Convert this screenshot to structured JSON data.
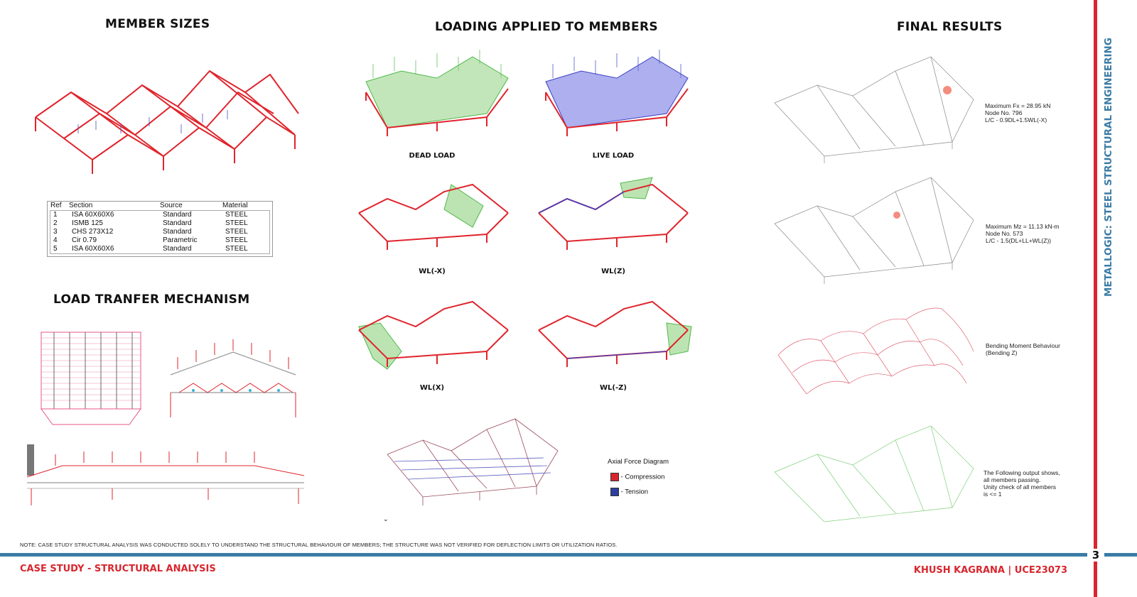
{
  "headings": {
    "member_sizes": "MEMBER SIZES",
    "loading": "LOADING APPLIED TO MEMBERS",
    "final_results": "FINAL RESULTS",
    "load_transfer": "LOAD TRANFER MECHANISM"
  },
  "section_table": {
    "headers": [
      "Ref",
      "Section",
      "Source",
      "Material"
    ],
    "rows": [
      [
        "1",
        "ISA 60X60X6",
        "Standard",
        "STEEL"
      ],
      [
        "2",
        "ISMB 125",
        "Standard",
        "STEEL"
      ],
      [
        "3",
        "CHS 273X12",
        "Standard",
        "STEEL"
      ],
      [
        "4",
        "Cir 0.79",
        "Parametric",
        "STEEL"
      ],
      [
        "5",
        "ISA 60X60X6",
        "Standard",
        "STEEL"
      ]
    ]
  },
  "load_panels": {
    "dead": "DEAD LOAD",
    "live": "LIVE LOAD",
    "wl_mx": "WL(-X)",
    "wl_z": "WL(Z)",
    "wl_x": "WL(X)",
    "wl_mz": "WL(-Z)"
  },
  "axial_legend": {
    "title": "Axial Force Diagram",
    "compression": "- Compression",
    "tension": "- Tension",
    "compression_color": "#d8262e",
    "tension_color": "#2b3f9e"
  },
  "results": {
    "r1": [
      "Maximum Fx = 28.95 kN",
      "Node No. 796",
      "L/C - 0.9DL+1.5WL(-X)"
    ],
    "r2": [
      "Maximum Mz = 11.13 kN-m",
      "Node No. 573",
      "L/C - 1.5(DL+LL+WL(Z))"
    ],
    "r3": [
      "Bending Moment Behaviour",
      "(Bending Z)"
    ],
    "r4": [
      "The Following output shows,",
      "all members passing.",
      "Unity check of all members",
      "is <= 1"
    ]
  },
  "note": "NOTE: CASE STUDY STRUCTURAL ANALYSIS WAS CONDUCTED SOLELY TO UNDERSTAND THE STRUCTURAL BEHAVIOUR OF MEMBERS; THE STRUCTURE WAS NOT VERIFIED FOR DEFLECTION LIMITS OR UTILIZATION RATIOS.",
  "footer": {
    "left": "CASE STUDY - STRUCTURAL ANALYSIS",
    "right": "KHUSH KAGRANA | UCE23073",
    "page_number": "3"
  },
  "side_title": "METALLOGIC: STEEL STRUCTURAL ENGINEERING",
  "colors": {
    "accent_red": "#d8262e",
    "accent_blue": "#3b7ca6",
    "load_green": "#4fb84a",
    "load_blue": "#3a3fc4"
  }
}
